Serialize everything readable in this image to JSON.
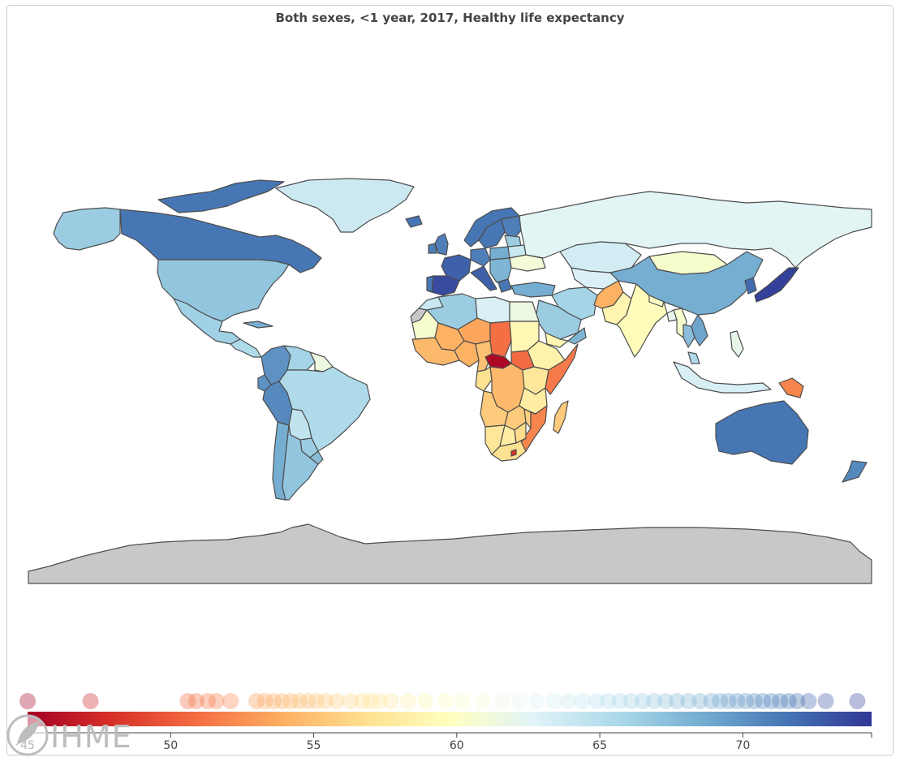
{
  "title": "Both sexes, <1 year, 2017, Healthy life expectancy",
  "logo_text": "IHME",
  "colors": {
    "low": "#a50026",
    "mid": "#ffffbf",
    "high": "#313695",
    "border": "#4d4d4d",
    "no_data": "#c8c8c8"
  },
  "chart_data": {
    "type": "choropleth",
    "metric": "Healthy life expectancy",
    "sex": "Both sexes",
    "age": "<1 year",
    "year": 2017,
    "color_scale": {
      "min": 45,
      "max": 74.5,
      "ticks": [
        45,
        50,
        55,
        60,
        65,
        70
      ],
      "palette": "RdYlBu"
    },
    "legend_placement": "bottom",
    "distribution": [
      45.0,
      47.2,
      50.6,
      50.9,
      51.3,
      51.6,
      52.1,
      53.0,
      53.3,
      53.6,
      53.9,
      54.2,
      54.5,
      54.8,
      55.1,
      55.4,
      55.8,
      56.3,
      56.7,
      57.0,
      57.3,
      57.7,
      58.3,
      58.9,
      59.6,
      60.2,
      60.9,
      61.6,
      62.2,
      62.8,
      63.4,
      63.9,
      64.4,
      64.9,
      65.3,
      65.7,
      66.1,
      66.5,
      66.9,
      67.3,
      67.7,
      68.1,
      68.5,
      68.9,
      69.2,
      69.5,
      69.8,
      70.1,
      70.4,
      70.7,
      71.0,
      71.3,
      71.6,
      71.9,
      72.3,
      72.9,
      74.0
    ],
    "regions": [
      {
        "name": "Alaska",
        "value": 66.5
      },
      {
        "name": "Canada",
        "value": 71.5
      },
      {
        "name": "Canadian Arctic",
        "value": 71.5
      },
      {
        "name": "Greenland",
        "value": 63.8
      },
      {
        "name": "United States",
        "value": 67.0
      },
      {
        "name": "Mexico",
        "value": 66.2
      },
      {
        "name": "Central America",
        "value": 65.5
      },
      {
        "name": "Cuba",
        "value": 68.5
      },
      {
        "name": "Colombia",
        "value": 70.0
      },
      {
        "name": "Venezuela",
        "value": 66.0
      },
      {
        "name": "Guyana",
        "value": 61.5
      },
      {
        "name": "Ecuador",
        "value": 70.0
      },
      {
        "name": "Peru",
        "value": 70.5
      },
      {
        "name": "Brazil",
        "value": 65.5
      },
      {
        "name": "Bolivia",
        "value": 64.5
      },
      {
        "name": "Paraguay",
        "value": 66.5
      },
      {
        "name": "Chile",
        "value": 68.5
      },
      {
        "name": "Argentina",
        "value": 67.0
      },
      {
        "name": "Uruguay",
        "value": 67.5
      },
      {
        "name": "Iceland",
        "value": 71.5
      },
      {
        "name": "United Kingdom",
        "value": 71.0
      },
      {
        "name": "Ireland",
        "value": 71.0
      },
      {
        "name": "Norway",
        "value": 71.5
      },
      {
        "name": "Sweden",
        "value": 71.5
      },
      {
        "name": "Finland",
        "value": 71.0
      },
      {
        "name": "France",
        "value": 72.5
      },
      {
        "name": "Spain",
        "value": 73.5
      },
      {
        "name": "Portugal",
        "value": 71.5
      },
      {
        "name": "Germany",
        "value": 71.0
      },
      {
        "name": "Italy",
        "value": 72.5
      },
      {
        "name": "Poland",
        "value": 68.5
      },
      {
        "name": "Baltics",
        "value": 66.5
      },
      {
        "name": "Belarus",
        "value": 64.0
      },
      {
        "name": "Ukraine",
        "value": 61.0
      },
      {
        "name": "Balkans",
        "value": 68.0
      },
      {
        "name": "Greece",
        "value": 71.5
      },
      {
        "name": "Turkey",
        "value": 68.5
      },
      {
        "name": "Russia",
        "value": 62.5
      },
      {
        "name": "Kazakhstan",
        "value": 63.5
      },
      {
        "name": "Central Asia",
        "value": 63.0
      },
      {
        "name": "Mongolia",
        "value": 60.5
      },
      {
        "name": "China",
        "value": 68.5
      },
      {
        "name": "Korea",
        "value": 72.0
      },
      {
        "name": "Japan",
        "value": 74.0
      },
      {
        "name": "Iran",
        "value": 66.0
      },
      {
        "name": "Afghanistan",
        "value": 54.0
      },
      {
        "name": "Pakistan",
        "value": 58.8
      },
      {
        "name": "India",
        "value": 59.5
      },
      {
        "name": "Nepal",
        "value": 60.2
      },
      {
        "name": "Bangladesh",
        "value": 62.0
      },
      {
        "name": "Myanmar",
        "value": 60.5
      },
      {
        "name": "Thailand",
        "value": 67.5
      },
      {
        "name": "Indochina",
        "value": 69.0
      },
      {
        "name": "Malaysia",
        "value": 65.5
      },
      {
        "name": "Indonesia",
        "value": 63.2
      },
      {
        "name": "Philippines",
        "value": 62.0
      },
      {
        "name": "Papua New Guinea",
        "value": 52.0
      },
      {
        "name": "Australia",
        "value": 71.5
      },
      {
        "name": "New Zealand",
        "value": 70.5
      },
      {
        "name": "Morocco",
        "value": 64.0
      },
      {
        "name": "Algeria",
        "value": 66.5
      },
      {
        "name": "Libya",
        "value": 63.0
      },
      {
        "name": "Egypt",
        "value": 61.5
      },
      {
        "name": "Saudi Arabia",
        "value": 66.5
      },
      {
        "name": "Yemen",
        "value": 59.0
      },
      {
        "name": "Oman",
        "value": 68.0
      },
      {
        "name": "Mauritania",
        "value": 60.5
      },
      {
        "name": "Mali",
        "value": 54.0
      },
      {
        "name": "Niger",
        "value": 53.5
      },
      {
        "name": "Chad",
        "value": 51.0
      },
      {
        "name": "Sudan",
        "value": 59.0
      },
      {
        "name": "South Sudan",
        "value": 50.8
      },
      {
        "name": "Ethiopia",
        "value": 58.5
      },
      {
        "name": "Somalia",
        "value": 51.5
      },
      {
        "name": "West Africa Coast",
        "value": 54.5
      },
      {
        "name": "Nigeria",
        "value": 54.0
      },
      {
        "name": "Cameroon",
        "value": 55.0
      },
      {
        "name": "Central African Republic",
        "value": 45.5
      },
      {
        "name": "DR Congo",
        "value": 54.5
      },
      {
        "name": "Congo / Gabon",
        "value": 57.0
      },
      {
        "name": "Kenya / Uganda",
        "value": 57.5
      },
      {
        "name": "Tanzania",
        "value": 58.0
      },
      {
        "name": "Angola",
        "value": 55.5
      },
      {
        "name": "Zambia",
        "value": 55.5
      },
      {
        "name": "Malawi",
        "value": 56.0
      },
      {
        "name": "Mozambique",
        "value": 52.0
      },
      {
        "name": "Namibia",
        "value": 57.5
      },
      {
        "name": "Botswana",
        "value": 58.0
      },
      {
        "name": "Zimbabwe",
        "value": 56.5
      },
      {
        "name": "South Africa",
        "value": 57.0
      },
      {
        "name": "Lesotho",
        "value": 48.0
      },
      {
        "name": "Madagascar",
        "value": 55.5
      },
      {
        "name": "Western Sahara",
        "value": null
      },
      {
        "name": "Antarctica",
        "value": null
      }
    ]
  }
}
